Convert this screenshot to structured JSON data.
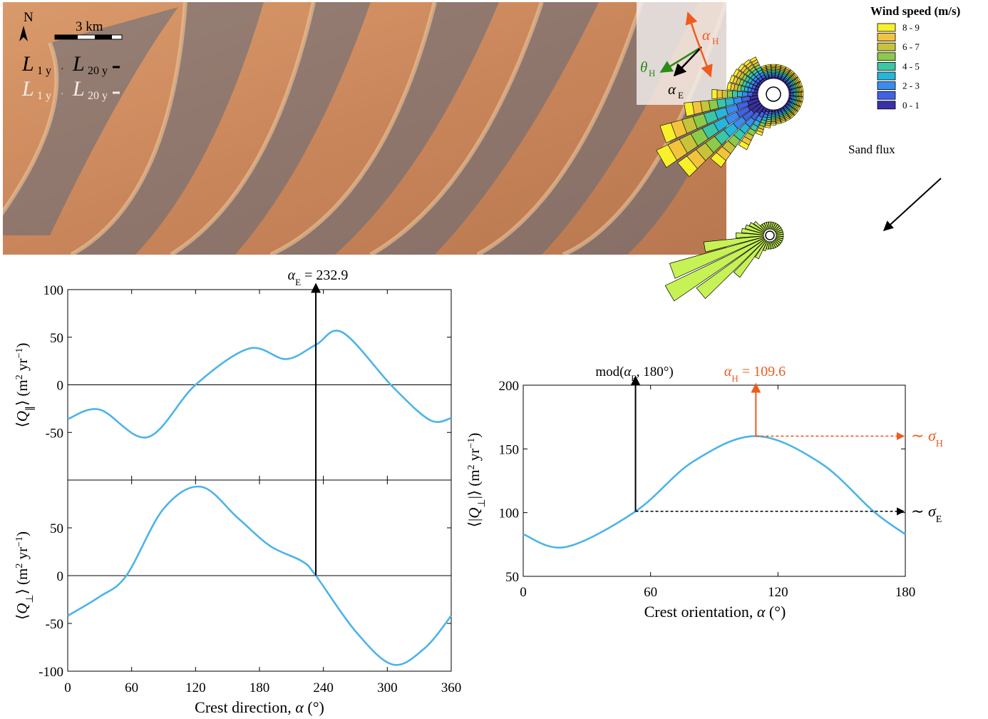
{
  "colors": {
    "curve": "#4db3ea",
    "orange": "#f05a1e",
    "green": "#2b8a1a",
    "black": "#000000"
  },
  "satellite": {
    "north_label": "N",
    "scale_label": "3 km",
    "L1_label": "L",
    "L1_sub": "1 y",
    "L20_label": "L",
    "L20_sub": "20 y",
    "alpha_H_label": "α",
    "alpha_H_sub": "H",
    "theta_H_label": "θ",
    "theta_H_sub": "H",
    "alpha_E_label": "α",
    "alpha_E_sub": "E"
  },
  "wind_rose": {
    "title": "Wind speed (m/s)",
    "legend": [
      {
        "label": "8 - 9",
        "color": "#f8f02a"
      },
      {
        "label": "",
        "color": "#f2c43e"
      },
      {
        "label": "6 - 7",
        "color": "#c7c33a"
      },
      {
        "label": "",
        "color": "#8dc94a"
      },
      {
        "label": "4 - 5",
        "color": "#3dc6a5"
      },
      {
        "label": "",
        "color": "#26b6d9"
      },
      {
        "label": "2 - 3",
        "color": "#3a8cf0"
      },
      {
        "label": "",
        "color": "#4162e6"
      },
      {
        "label": "0 - 1",
        "color": "#3a30a8"
      }
    ]
  },
  "sand_flux": {
    "title": "Sand flux"
  },
  "chart_data": [
    {
      "type": "line",
      "panel": "top-left",
      "ylabel": "⟨Q∥⟩ (m² yr⁻¹)",
      "ylim": [
        -100,
        100
      ],
      "yticks": [
        "100",
        "50",
        "0",
        "-50"
      ],
      "x": [
        0,
        30,
        75,
        120,
        170,
        205,
        232.9,
        258,
        305,
        340,
        360
      ],
      "y": [
        -36,
        -26,
        -55,
        0,
        38,
        27,
        42,
        55,
        -2,
        -37,
        -35
      ],
      "annotation": "αE = 232.9"
    },
    {
      "type": "line",
      "panel": "bottom-left",
      "ylabel": "⟨Q⊥⟩ (m² yr⁻¹)",
      "xlabel": "Crest direction, α (°)",
      "ylim": [
        -100,
        100
      ],
      "yticks": [
        "50",
        "0",
        "-50",
        "-100"
      ],
      "xticks": [
        "0",
        "60",
        "120",
        "180",
        "240",
        "300",
        "360"
      ],
      "x": [
        0,
        30,
        55,
        90,
        125,
        160,
        190,
        220,
        232.9,
        270,
        305,
        335,
        360
      ],
      "y": [
        -42,
        -22,
        0,
        70,
        93,
        60,
        31,
        15,
        0,
        -58,
        -93,
        -76,
        -42
      ]
    },
    {
      "type": "line",
      "panel": "right",
      "ylabel": "⟨|Q⊥|⟩ (m² yr⁻¹)",
      "xlabel": "Crest orientation, α (°)",
      "xlim": [
        0,
        180
      ],
      "ylim": [
        50,
        200
      ],
      "xticks": [
        "0",
        "60",
        "120",
        "180"
      ],
      "yticks": [
        "200",
        "150",
        "100",
        "50"
      ],
      "x": [
        0,
        20,
        52.9,
        80,
        109.6,
        140,
        165,
        180
      ],
      "y": [
        83,
        73,
        101,
        140,
        160,
        139,
        101,
        83
      ],
      "alpha_E_mod": 52.9,
      "alpha_H": 109.6,
      "annotation_E": "mod(αE, 180°)",
      "annotation_H": "αH = 109.6",
      "sigma_H_label": "∼ σH",
      "sigma_E_label": "∼ σE"
    }
  ]
}
